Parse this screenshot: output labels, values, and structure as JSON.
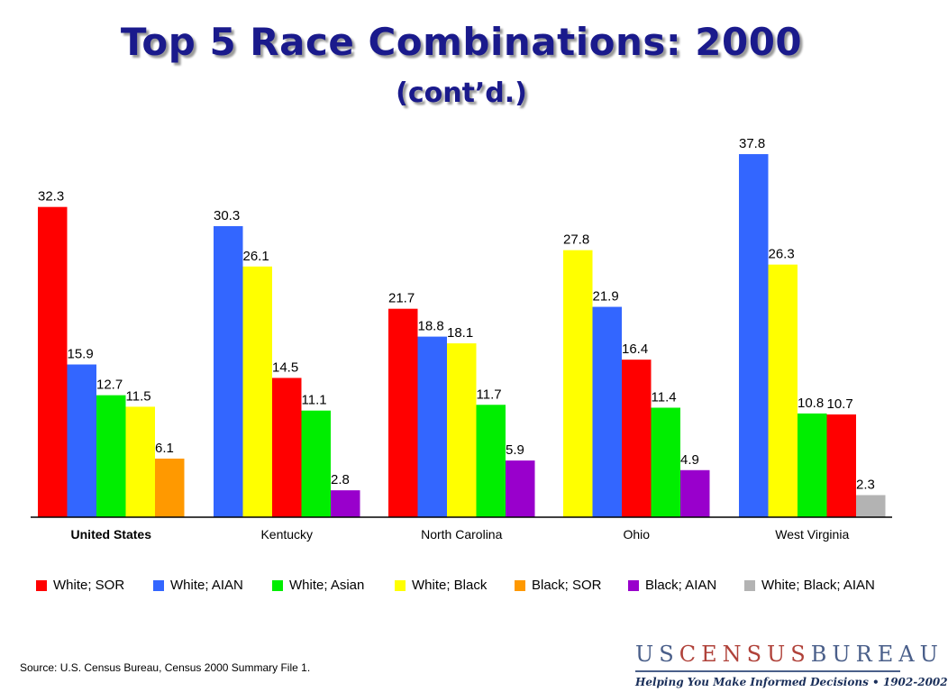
{
  "header": {
    "title": "Top 5 Race Combinations: 2000",
    "subtitle": "(cont’d.)"
  },
  "chart_data": {
    "type": "bar",
    "ylim": [
      0,
      40
    ],
    "grid": false,
    "legend_placement": "bottom",
    "series_colors": {
      "White; SOR": "#ff0000",
      "White; AIAN": "#3366ff",
      "White; Asian": "#00ee00",
      "White; Black": "#ffff00",
      "Black; SOR": "#ff9900",
      "Black; AIAN": "#9900cc",
      "White; Black; AIAN": "#b3b3b3"
    },
    "groups": [
      {
        "name": "United States",
        "bold": true,
        "bars": [
          {
            "series": "White; SOR",
            "value": 32.3,
            "label": "32.3"
          },
          {
            "series": "White; AIAN",
            "value": 15.9,
            "label": "15.9"
          },
          {
            "series": "White; Asian",
            "value": 12.7,
            "label": "12.7"
          },
          {
            "series": "White; Black",
            "value": 11.5,
            "label": "11.5"
          },
          {
            "series": "Black; SOR",
            "value": 6.1,
            "label": "6.1"
          }
        ]
      },
      {
        "name": "Kentucky",
        "bold": false,
        "bars": [
          {
            "series": "White; AIAN",
            "value": 30.3,
            "label": "30.3"
          },
          {
            "series": "White; Black",
            "value": 26.1,
            "label": "26.1"
          },
          {
            "series": "White; SOR",
            "value": 14.5,
            "label": "14.5"
          },
          {
            "series": "White; Asian",
            "value": 11.1,
            "label": "11.1"
          },
          {
            "series": "Black; AIAN",
            "value": 2.8,
            "label": "2.8"
          }
        ]
      },
      {
        "name": "North Carolina",
        "bold": false,
        "bars": [
          {
            "series": "White; SOR",
            "value": 21.7,
            "label": "21.7"
          },
          {
            "series": "White; AIAN",
            "value": 18.8,
            "label": "18.8"
          },
          {
            "series": "White; Black",
            "value": 18.1,
            "label": "18.1"
          },
          {
            "series": "White; Asian",
            "value": 11.7,
            "label": "11.7"
          },
          {
            "series": "Black; AIAN",
            "value": 5.9,
            "label": "5.9"
          }
        ]
      },
      {
        "name": "Ohio",
        "bold": false,
        "bars": [
          {
            "series": "White; Black",
            "value": 27.8,
            "label": "27.8"
          },
          {
            "series": "White; AIAN",
            "value": 21.9,
            "label": "21.9"
          },
          {
            "series": "White; SOR",
            "value": 16.4,
            "label": "16.4"
          },
          {
            "series": "White; Asian",
            "value": 11.4,
            "label": "11.4"
          },
          {
            "series": "Black; AIAN",
            "value": 4.9,
            "label": "4.9"
          }
        ]
      },
      {
        "name": "West Virginia",
        "bold": false,
        "bars": [
          {
            "series": "White; AIAN",
            "value": 37.8,
            "label": "37.8"
          },
          {
            "series": "White; Black",
            "value": 26.3,
            "label": "26.3"
          },
          {
            "series": "White; Asian",
            "value": 10.8,
            "label": "10.8"
          },
          {
            "series": "White; SOR",
            "value": 10.7,
            "label": "10.7"
          },
          {
            "series": "White; Black; AIAN",
            "value": 2.3,
            "label": "2.3"
          }
        ]
      }
    ]
  },
  "legend": [
    {
      "label": "White; SOR",
      "color": "#ff0000"
    },
    {
      "label": "White; AIAN",
      "color": "#3366ff"
    },
    {
      "label": "White; Asian",
      "color": "#00ee00"
    },
    {
      "label": "White; Black",
      "color": "#ffff00"
    },
    {
      "label": "Black; SOR",
      "color": "#ff9900"
    },
    {
      "label": "Black; AIAN",
      "color": "#9900cc"
    },
    {
      "label": "White; Black; AIAN",
      "color": "#b3b3b3"
    }
  ],
  "footer": {
    "source": "Source:  U.S. Census Bureau, Census 2000 Summary File 1.",
    "brand_parts": [
      "U",
      "S",
      "C",
      "E",
      "N",
      "S",
      "U",
      "S",
      "B",
      "U",
      "R",
      "E",
      "A",
      "U"
    ],
    "brand_tagline": "Helping You Make Informed Decisions • 1902-2002"
  }
}
